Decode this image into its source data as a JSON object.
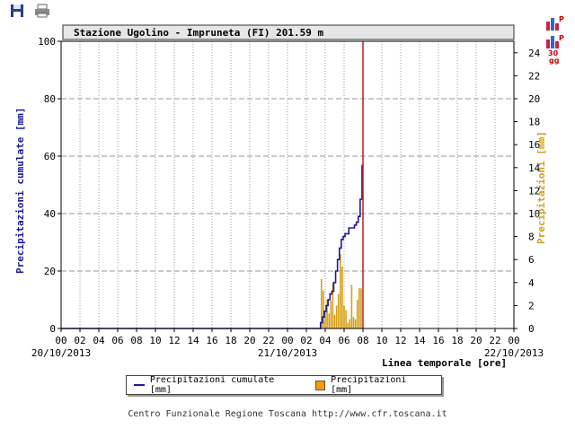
{
  "toolbar": {
    "save_icon": "save-icon",
    "print_icon": "print-icon"
  },
  "side_icons": {
    "p_label": "P",
    "thirty_label": "30",
    "gg_label": "gg"
  },
  "chart_data": {
    "type": "line+bar",
    "title": "Stazione Ugolino - Impruneta (FI) 201.59 m",
    "ylabel_left": "Precipitazioni cumulate [mm]",
    "ylabel_right": "Precipitazioni [mm]",
    "xlabel": "Linea temporale [ore]",
    "ylim_left": [
      0,
      100
    ],
    "ylim_right": [
      0,
      25
    ],
    "yticks_left": [
      0,
      20,
      40,
      60,
      80,
      100
    ],
    "yticks_right": [
      0,
      2,
      4,
      6,
      8,
      10,
      12,
      14,
      16,
      18,
      20,
      22,
      24
    ],
    "xlim_hours": [
      0,
      48
    ],
    "xtick_hours": [
      "00",
      "02",
      "04",
      "06",
      "08",
      "10",
      "12",
      "14",
      "16",
      "18",
      "20",
      "22",
      "00",
      "02",
      "04",
      "06",
      "08",
      "10",
      "12",
      "14",
      "16",
      "18",
      "20",
      "22",
      "00"
    ],
    "date_labels": [
      "20/10/2013",
      "21/10/2013",
      "22/10/2013"
    ],
    "current_time_hour": 32,
    "series": [
      {
        "name": "Precipitazioni cumulate [mm]",
        "color": "#1a1aa0",
        "kind": "step-line",
        "x": [
          0,
          27.3,
          27.5,
          27.7,
          27.9,
          28.1,
          28.3,
          28.5,
          28.7,
          28.9,
          29.1,
          29.3,
          29.5,
          29.7,
          29.9,
          30.1,
          30.3,
          30.5,
          30.7,
          30.9,
          31.1,
          31.3,
          31.5,
          31.7,
          31.9
        ],
        "y": [
          0,
          0,
          2,
          4,
          6,
          8,
          10,
          12,
          13,
          16,
          20,
          24,
          28,
          31,
          32,
          33,
          33,
          35,
          35,
          35,
          36,
          37,
          39,
          45,
          57
        ]
      },
      {
        "name": "Precipitazioni [mm]",
        "color": "#d4a017",
        "kind": "bar",
        "x": [
          27.6,
          27.8,
          28.0,
          28.2,
          28.4,
          28.6,
          28.8,
          29.0,
          29.2,
          29.4,
          29.6,
          29.8,
          30.0,
          30.2,
          30.4,
          30.6,
          30.8,
          31.0,
          31.2,
          31.4,
          31.6,
          31.8
        ],
        "y": [
          4.3,
          3.3,
          1.6,
          2.5,
          1.3,
          2.4,
          4.0,
          1.2,
          2.0,
          3.0,
          6.5,
          5.4,
          2.0,
          1.6,
          0.5,
          0.8,
          3.8,
          1.0,
          0.8,
          2.5,
          3.5,
          3.5
        ]
      }
    ],
    "grid": true
  },
  "legend": {
    "cumulate_label": "Precipitazioni cumulate [mm]",
    "rain_label": "Precipitazioni [mm]"
  },
  "footer": "Centro Funzionale Regione Toscana http://www.cfr.toscana.it",
  "colors": {
    "cumulate": "#1a1aa0",
    "rain": "#d4a017",
    "rain_legend": "#ff9900",
    "now_line": "#b22222",
    "grid": "#999999",
    "title_bg": "#e6e6e6"
  }
}
